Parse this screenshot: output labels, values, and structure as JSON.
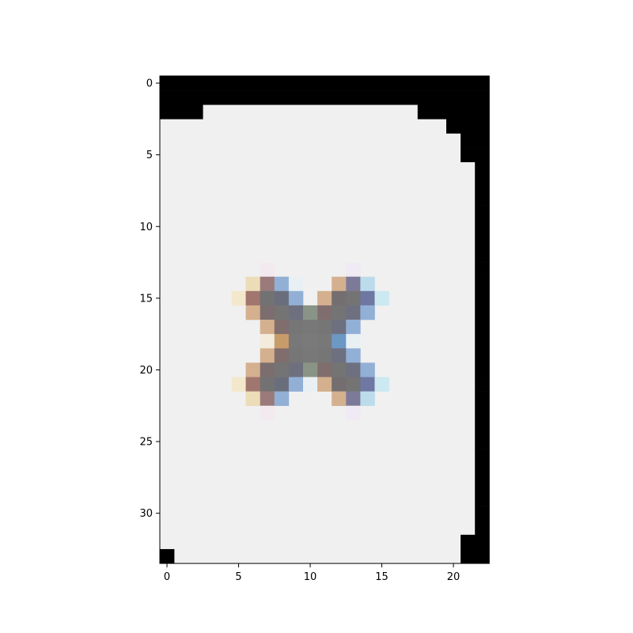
{
  "chart_data": {
    "type": "heatmap",
    "title": "",
    "xlabel": "",
    "ylabel": "",
    "xlim": [
      -0.5,
      22.5
    ],
    "ylim": [
      33.5,
      -0.5
    ],
    "y_axis_inverted": true,
    "grid": false,
    "x_ticks": [
      0,
      5,
      10,
      15,
      20
    ],
    "x_tick_labels": [
      "0",
      "5",
      "10",
      "15",
      "20"
    ],
    "y_ticks": [
      0,
      5,
      10,
      15,
      20,
      25,
      30
    ],
    "y_tick_labels": [
      "0",
      "5",
      "10",
      "15",
      "20",
      "25",
      "30"
    ],
    "n_rows": 34,
    "n_cols": 23,
    "background_color": "#f0f0f0",
    "border_color": "#000000",
    "black_cells_by_row": [
      [
        [
          0,
          22
        ]
      ],
      [
        [
          0,
          22
        ]
      ],
      [
        [
          0,
          2
        ],
        [
          18,
          22
        ]
      ],
      [
        [
          20,
          22
        ]
      ],
      [
        [
          21,
          22
        ]
      ],
      [
        [
          21,
          22
        ]
      ],
      [
        [
          22,
          22
        ]
      ],
      [
        [
          22,
          22
        ]
      ],
      [
        [
          22,
          22
        ]
      ],
      [
        [
          22,
          22
        ]
      ],
      [
        [
          22,
          22
        ]
      ],
      [
        [
          22,
          22
        ]
      ],
      [
        [
          22,
          22
        ]
      ],
      [
        [
          22,
          22
        ]
      ],
      [
        [
          22,
          22
        ]
      ],
      [
        [
          22,
          22
        ]
      ],
      [
        [
          22,
          22
        ]
      ],
      [
        [
          22,
          22
        ]
      ],
      [
        [
          22,
          22
        ]
      ],
      [
        [
          22,
          22
        ]
      ],
      [
        [
          22,
          22
        ]
      ],
      [
        [
          22,
          22
        ]
      ],
      [
        [
          22,
          22
        ]
      ],
      [
        [
          22,
          22
        ]
      ],
      [
        [
          22,
          22
        ]
      ],
      [
        [
          22,
          22
        ]
      ],
      [
        [
          22,
          22
        ]
      ],
      [
        [
          22,
          22
        ]
      ],
      [
        [
          22,
          22
        ]
      ],
      [
        [
          22,
          22
        ]
      ],
      [
        [
          22,
          22
        ]
      ],
      [
        [
          22,
          22
        ]
      ],
      [
        [
          21,
          22
        ]
      ],
      [
        [
          0,
          0
        ],
        [
          21,
          22
        ]
      ]
    ],
    "icon_cells": [
      {
        "row": 13,
        "col": 7,
        "color": "#f3eaf0"
      },
      {
        "row": 13,
        "col": 13,
        "color": "#efeaf3"
      },
      {
        "row": 14,
        "col": 6,
        "color": "#ecdcb8"
      },
      {
        "row": 14,
        "col": 7,
        "color": "#9a7a7a"
      },
      {
        "row": 14,
        "col": 8,
        "color": "#92b0d6"
      },
      {
        "row": 14,
        "col": 9,
        "color": "#e8f0f4"
      },
      {
        "row": 14,
        "col": 12,
        "color": "#d4b08e"
      },
      {
        "row": 14,
        "col": 13,
        "color": "#7c7a98"
      },
      {
        "row": 14,
        "col": 14,
        "color": "#bcdcec"
      },
      {
        "row": 15,
        "col": 5,
        "color": "#f3e8cc"
      },
      {
        "row": 15,
        "col": 6,
        "color": "#a0766e"
      },
      {
        "row": 15,
        "col": 7,
        "color": "#727272"
      },
      {
        "row": 15,
        "col": 8,
        "color": "#6a6e7c"
      },
      {
        "row": 15,
        "col": 9,
        "color": "#92b0d6"
      },
      {
        "row": 15,
        "col": 11,
        "color": "#d4b08e"
      },
      {
        "row": 15,
        "col": 12,
        "color": "#746e70"
      },
      {
        "row": 15,
        "col": 13,
        "color": "#747474"
      },
      {
        "row": 15,
        "col": 14,
        "color": "#6e78a2"
      },
      {
        "row": 15,
        "col": 15,
        "color": "#cce8f0"
      },
      {
        "row": 16,
        "col": 6,
        "color": "#d4b08e"
      },
      {
        "row": 16,
        "col": 7,
        "color": "#7c6e6e"
      },
      {
        "row": 16,
        "col": 8,
        "color": "#747474"
      },
      {
        "row": 16,
        "col": 9,
        "color": "#6e7080"
      },
      {
        "row": 16,
        "col": 10,
        "color": "#8a9486"
      },
      {
        "row": 16,
        "col": 11,
        "color": "#806e6e"
      },
      {
        "row": 16,
        "col": 12,
        "color": "#747474"
      },
      {
        "row": 16,
        "col": 13,
        "color": "#6e7080"
      },
      {
        "row": 16,
        "col": 14,
        "color": "#92b0d6"
      },
      {
        "row": 17,
        "col": 7,
        "color": "#d4b08e"
      },
      {
        "row": 17,
        "col": 8,
        "color": "#806e6e"
      },
      {
        "row": 17,
        "col": 9,
        "color": "#767676"
      },
      {
        "row": 17,
        "col": 10,
        "color": "#787878"
      },
      {
        "row": 17,
        "col": 11,
        "color": "#767676"
      },
      {
        "row": 17,
        "col": 12,
        "color": "#6e7080"
      },
      {
        "row": 17,
        "col": 13,
        "color": "#92b0d6"
      },
      {
        "row": 18,
        "col": 7,
        "color": "#f3ecdc"
      },
      {
        "row": 18,
        "col": 8,
        "color": "#c89c6a"
      },
      {
        "row": 18,
        "col": 9,
        "color": "#787878"
      },
      {
        "row": 18,
        "col": 10,
        "color": "#7a7a7a"
      },
      {
        "row": 18,
        "col": 11,
        "color": "#787878"
      },
      {
        "row": 18,
        "col": 12,
        "color": "#6c98c4"
      },
      {
        "row": 18,
        "col": 13,
        "color": "#e8f0f4"
      },
      {
        "row": 19,
        "col": 7,
        "color": "#d4b08e"
      },
      {
        "row": 19,
        "col": 8,
        "color": "#806e6e"
      },
      {
        "row": 19,
        "col": 9,
        "color": "#767676"
      },
      {
        "row": 19,
        "col": 10,
        "color": "#787878"
      },
      {
        "row": 19,
        "col": 11,
        "color": "#767676"
      },
      {
        "row": 19,
        "col": 12,
        "color": "#6e7080"
      },
      {
        "row": 19,
        "col": 13,
        "color": "#92b0d6"
      },
      {
        "row": 20,
        "col": 6,
        "color": "#d4b08e"
      },
      {
        "row": 20,
        "col": 7,
        "color": "#7c6e6e"
      },
      {
        "row": 20,
        "col": 8,
        "color": "#747474"
      },
      {
        "row": 20,
        "col": 9,
        "color": "#6e7080"
      },
      {
        "row": 20,
        "col": 10,
        "color": "#8a9486"
      },
      {
        "row": 20,
        "col": 11,
        "color": "#806e6e"
      },
      {
        "row": 20,
        "col": 12,
        "color": "#747474"
      },
      {
        "row": 20,
        "col": 13,
        "color": "#6e7080"
      },
      {
        "row": 20,
        "col": 14,
        "color": "#92b0d6"
      },
      {
        "row": 21,
        "col": 5,
        "color": "#f3e8cc"
      },
      {
        "row": 21,
        "col": 6,
        "color": "#a0766e"
      },
      {
        "row": 21,
        "col": 7,
        "color": "#727272"
      },
      {
        "row": 21,
        "col": 8,
        "color": "#6a6e7c"
      },
      {
        "row": 21,
        "col": 9,
        "color": "#92b0d6"
      },
      {
        "row": 21,
        "col": 10,
        "color": "#e8f0f4"
      },
      {
        "row": 21,
        "col": 11,
        "color": "#d4b08e"
      },
      {
        "row": 21,
        "col": 12,
        "color": "#746e70"
      },
      {
        "row": 21,
        "col": 13,
        "color": "#747474"
      },
      {
        "row": 21,
        "col": 14,
        "color": "#6e78a2"
      },
      {
        "row": 21,
        "col": 15,
        "color": "#cce8f0"
      },
      {
        "row": 22,
        "col": 6,
        "color": "#ecdcb8"
      },
      {
        "row": 22,
        "col": 7,
        "color": "#9a7a7a"
      },
      {
        "row": 22,
        "col": 8,
        "color": "#92b0d6"
      },
      {
        "row": 22,
        "col": 12,
        "color": "#d4b08e"
      },
      {
        "row": 22,
        "col": 13,
        "color": "#7c7a98"
      },
      {
        "row": 22,
        "col": 14,
        "color": "#bcdcec"
      },
      {
        "row": 23,
        "col": 7,
        "color": "#f3eaf0"
      },
      {
        "row": 23,
        "col": 13,
        "color": "#efeaf3"
      }
    ]
  }
}
